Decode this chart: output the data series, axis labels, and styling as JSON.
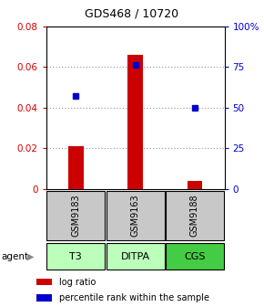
{
  "title": "GDS468 / 10720",
  "samples": [
    "GSM9183",
    "GSM9163",
    "GSM9188"
  ],
  "agents": [
    "T3",
    "DITPA",
    "CGS"
  ],
  "log_ratios": [
    0.021,
    0.066,
    0.004
  ],
  "percentile_ranks_pct": [
    57,
    76,
    50
  ],
  "ylim_left": [
    0,
    0.08
  ],
  "ylim_right": [
    0,
    100
  ],
  "yticks_left": [
    0,
    0.02,
    0.04,
    0.06,
    0.08
  ],
  "yticks_right": [
    0,
    25,
    50,
    75,
    100
  ],
  "bar_color": "#cc0000",
  "dot_color": "#0000cc",
  "sample_bg": "#c8c8c8",
  "agent_bg_t3": "#bbffbb",
  "agent_bg_ditpa": "#bbffbb",
  "agent_bg_cgs": "#44cc44",
  "grid_color": "#888888",
  "left_label_color": "#cc0000",
  "right_label_color": "#0000cc",
  "title_fontsize": 9,
  "tick_fontsize": 7.5,
  "legend_fontsize": 7,
  "sample_fontsize": 7,
  "agent_fontsize": 8
}
